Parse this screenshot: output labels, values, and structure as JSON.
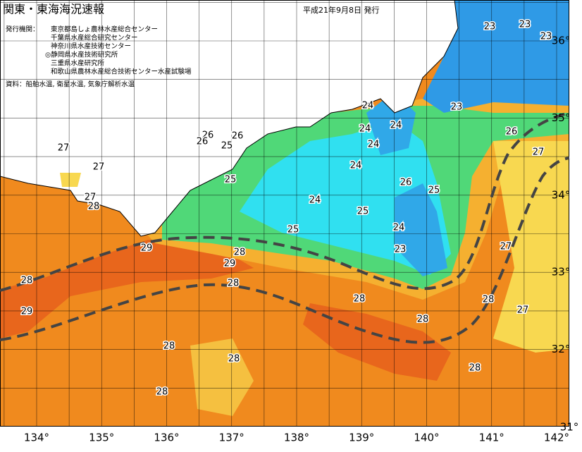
{
  "header": {
    "title": "関東・東海海況速報",
    "date": "平成21年9月8日 発行"
  },
  "issuers": {
    "label": "発行機関：",
    "items": [
      "東京都島しょ農林水産総合センター",
      "千葉県水産総合研究センター",
      "神奈川県水産技術センター",
      "◎静岡県水産技術研究所",
      "三重県水産研究所",
      "和歌山県農林水産総合技術センター水産試験場"
    ]
  },
  "source": "資料：船舶水温, 衛星水温, 気象庁解析水温",
  "lon_labels": [
    "134°",
    "135°",
    "136°",
    "137°",
    "138°",
    "139°",
    "140°",
    "141°",
    "142°"
  ],
  "lat_labels": [
    "36°",
    "35°",
    "34°",
    "33°",
    "32°",
    "31°"
  ],
  "contour_labels": [
    "23",
    "23",
    "23",
    "24",
    "23",
    "26",
    "26",
    "26",
    "25",
    "27",
    "27",
    "24",
    "24",
    "24",
    "26",
    "27",
    "24",
    "25",
    "26",
    "25",
    "27",
    "28",
    "24",
    "25",
    "24",
    "25",
    "29",
    "28",
    "23",
    "29",
    "27",
    "28",
    "28",
    "28",
    "28",
    "29",
    "28",
    "27",
    "28",
    "28",
    "28",
    "28"
  ]
}
